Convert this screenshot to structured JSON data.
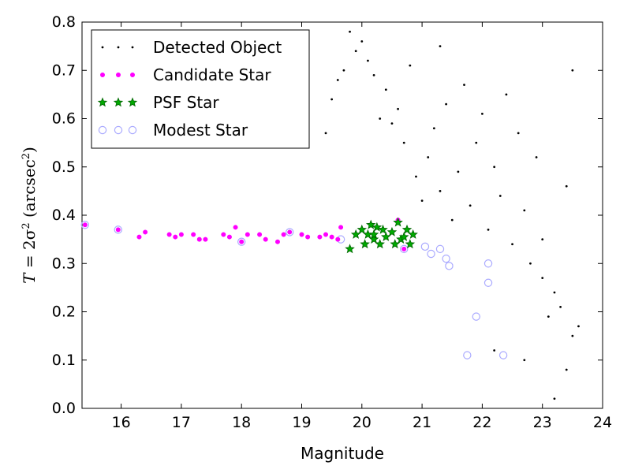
{
  "chart_data": {
    "type": "scatter",
    "xlabel": "Magnitude",
    "ylabel": {
      "var": "T",
      "rhs": " = 2σ",
      "sq": "2",
      "unit_open": " (arcsec",
      "unit_sq": "2",
      "unit_close": ")"
    },
    "xlim": [
      15.35,
      24
    ],
    "ylim": [
      0.0,
      0.8
    ],
    "xticks": [
      "16",
      "17",
      "18",
      "19",
      "20",
      "21",
      "22",
      "23",
      "24"
    ],
    "yticks": [
      "0.0",
      "0.1",
      "0.2",
      "0.3",
      "0.4",
      "0.5",
      "0.6",
      "0.7",
      "0.8"
    ],
    "grid": false,
    "legend_position": "top-left",
    "colors": {
      "detected": "#000000",
      "candidate": "#ff00ff",
      "psf_fill": "#00aa00",
      "psf_edge": "#006400",
      "modest": "#aaaaff"
    },
    "legend": [
      {
        "key": "detected",
        "label": "Detected Object"
      },
      {
        "key": "candidate",
        "label": "Candidate Star"
      },
      {
        "key": "psf",
        "label": "PSF Star"
      },
      {
        "key": "modest",
        "label": "Modest Star"
      }
    ],
    "series": {
      "detected": [
        [
          19.4,
          0.57
        ],
        [
          19.5,
          0.64
        ],
        [
          19.6,
          0.68
        ],
        [
          19.7,
          0.7
        ],
        [
          19.8,
          0.78
        ],
        [
          19.9,
          0.74
        ],
        [
          20.0,
          0.76
        ],
        [
          20.1,
          0.72
        ],
        [
          20.2,
          0.69
        ],
        [
          20.3,
          0.6
        ],
        [
          20.4,
          0.66
        ],
        [
          20.5,
          0.59
        ],
        [
          20.6,
          0.62
        ],
        [
          20.7,
          0.55
        ],
        [
          20.8,
          0.71
        ],
        [
          20.9,
          0.48
        ],
        [
          21.0,
          0.43
        ],
        [
          21.1,
          0.52
        ],
        [
          21.2,
          0.58
        ],
        [
          21.3,
          0.45
        ],
        [
          21.4,
          0.63
        ],
        [
          21.5,
          0.39
        ],
        [
          21.6,
          0.49
        ],
        [
          21.7,
          0.67
        ],
        [
          21.8,
          0.42
        ],
        [
          21.9,
          0.55
        ],
        [
          22.0,
          0.61
        ],
        [
          22.1,
          0.37
        ],
        [
          22.2,
          0.5
        ],
        [
          22.3,
          0.44
        ],
        [
          22.4,
          0.65
        ],
        [
          22.5,
          0.34
        ],
        [
          22.6,
          0.57
        ],
        [
          22.7,
          0.41
        ],
        [
          22.8,
          0.3
        ],
        [
          22.9,
          0.52
        ],
        [
          23.0,
          0.27
        ],
        [
          23.1,
          0.19
        ],
        [
          23.2,
          0.24
        ],
        [
          23.3,
          0.21
        ],
        [
          23.4,
          0.46
        ],
        [
          23.5,
          0.15
        ],
        [
          23.6,
          0.17
        ],
        [
          23.2,
          0.02
        ],
        [
          23.4,
          0.08
        ],
        [
          23.5,
          0.7
        ],
        [
          22.2,
          0.12
        ],
        [
          22.7,
          0.1
        ],
        [
          23.0,
          0.35
        ],
        [
          21.3,
          0.75
        ]
      ],
      "candidate": [
        [
          15.4,
          0.38
        ],
        [
          15.95,
          0.37
        ],
        [
          16.3,
          0.355
        ],
        [
          16.4,
          0.365
        ],
        [
          16.8,
          0.36
        ],
        [
          16.9,
          0.355
        ],
        [
          17.0,
          0.36
        ],
        [
          17.2,
          0.36
        ],
        [
          17.3,
          0.35
        ],
        [
          17.4,
          0.35
        ],
        [
          17.7,
          0.36
        ],
        [
          17.8,
          0.355
        ],
        [
          17.9,
          0.375
        ],
        [
          18.0,
          0.345
        ],
        [
          18.1,
          0.36
        ],
        [
          18.3,
          0.36
        ],
        [
          18.4,
          0.35
        ],
        [
          18.6,
          0.345
        ],
        [
          18.7,
          0.36
        ],
        [
          18.8,
          0.365
        ],
        [
          19.0,
          0.36
        ],
        [
          19.1,
          0.355
        ],
        [
          19.3,
          0.355
        ],
        [
          19.4,
          0.36
        ],
        [
          19.5,
          0.355
        ],
        [
          19.6,
          0.35
        ],
        [
          19.65,
          0.375
        ],
        [
          20.6,
          0.39
        ],
        [
          20.7,
          0.33
        ]
      ],
      "psf": [
        [
          19.8,
          0.33
        ],
        [
          19.9,
          0.36
        ],
        [
          20.0,
          0.37
        ],
        [
          20.05,
          0.34
        ],
        [
          20.1,
          0.36
        ],
        [
          20.15,
          0.38
        ],
        [
          20.2,
          0.35
        ],
        [
          20.25,
          0.375
        ],
        [
          20.3,
          0.34
        ],
        [
          20.35,
          0.37
        ],
        [
          20.4,
          0.355
        ],
        [
          20.5,
          0.365
        ],
        [
          20.55,
          0.34
        ],
        [
          20.6,
          0.385
        ],
        [
          20.65,
          0.35
        ],
        [
          20.7,
          0.355
        ],
        [
          20.75,
          0.37
        ],
        [
          20.8,
          0.34
        ],
        [
          20.85,
          0.36
        ],
        [
          20.2,
          0.36
        ]
      ],
      "modest": [
        [
          15.4,
          0.38
        ],
        [
          15.95,
          0.37
        ],
        [
          18.0,
          0.345
        ],
        [
          18.8,
          0.365
        ],
        [
          19.65,
          0.35
        ],
        [
          21.05,
          0.335
        ],
        [
          21.15,
          0.32
        ],
        [
          21.3,
          0.33
        ],
        [
          21.4,
          0.31
        ],
        [
          21.45,
          0.295
        ],
        [
          21.9,
          0.19
        ],
        [
          21.75,
          0.11
        ],
        [
          22.35,
          0.11
        ],
        [
          22.1,
          0.26
        ],
        [
          22.1,
          0.3
        ],
        [
          20.7,
          0.33
        ]
      ]
    }
  }
}
